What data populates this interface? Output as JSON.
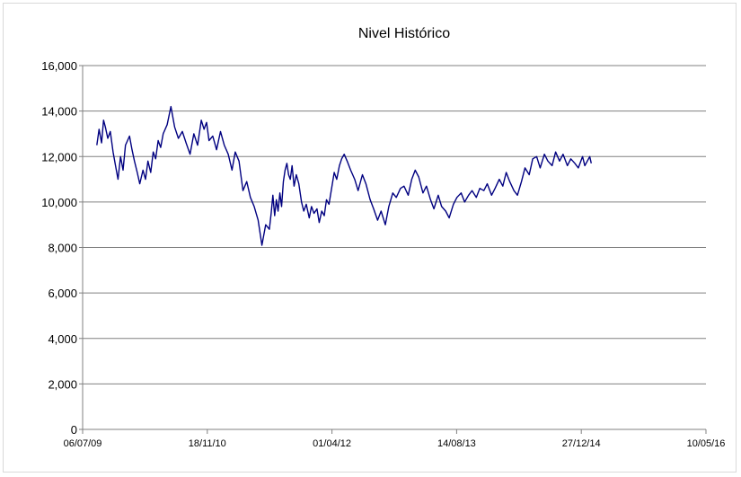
{
  "chart_data": {
    "type": "line",
    "title": "Nivel Histórico",
    "xlabel": "",
    "ylabel": "",
    "x_axis_type": "date",
    "xlim": [
      "2009-07-06",
      "2016-05-10"
    ],
    "ylim": [
      0,
      16000
    ],
    "yticks": [
      0,
      2000,
      4000,
      6000,
      8000,
      10000,
      12000,
      14000,
      16000
    ],
    "ytick_labels": [
      "0",
      "2,000",
      "4,000",
      "6,000",
      "8,000",
      "10,000",
      "12,000",
      "14,000",
      "16,000"
    ],
    "xticks": [
      "2009-07-06",
      "2010-11-18",
      "2012-04-01",
      "2013-08-14",
      "2014-12-27",
      "2016-05-10"
    ],
    "xtick_labels": [
      "06/07/09",
      "18/11/10",
      "01/04/12",
      "14/08/13",
      "27/12/14",
      "10/05/16"
    ],
    "grid": {
      "y": true,
      "x": false
    },
    "legend": "none",
    "colors": {
      "line": "#000080",
      "grid": "#808080",
      "axis": "#808080",
      "frame": "#d9d9d9"
    },
    "series": [
      {
        "x": [
          "2009-09-01",
          "2009-09-10",
          "2009-09-20",
          "2009-09-28",
          "2009-10-05",
          "2009-10-15",
          "2009-10-25",
          "2009-11-05",
          "2009-11-15",
          "2009-11-25",
          "2009-12-05",
          "2009-12-15",
          "2009-12-25",
          "2010-01-10",
          "2010-01-20",
          "2010-01-30",
          "2010-02-10",
          "2010-02-20",
          "2010-03-05",
          "2010-03-15",
          "2010-03-25",
          "2010-04-05",
          "2010-04-15",
          "2010-04-25",
          "2010-05-05",
          "2010-05-15",
          "2010-05-25",
          "2010-06-10",
          "2010-06-25",
          "2010-07-10",
          "2010-07-25",
          "2010-08-10",
          "2010-08-25",
          "2010-09-10",
          "2010-09-25",
          "2010-10-10",
          "2010-10-25",
          "2010-11-05",
          "2010-11-15",
          "2010-11-25",
          "2010-12-10",
          "2010-12-25",
          "2011-01-10",
          "2011-01-25",
          "2011-02-10",
          "2011-02-25",
          "2011-03-10",
          "2011-03-25",
          "2011-04-10",
          "2011-04-25",
          "2011-05-10",
          "2011-05-25",
          "2011-06-10",
          "2011-06-25",
          "2011-07-10",
          "2011-07-25",
          "2011-08-01",
          "2011-08-08",
          "2011-08-15",
          "2011-08-22",
          "2011-08-29",
          "2011-09-05",
          "2011-09-12",
          "2011-09-19",
          "2011-09-26",
          "2011-10-03",
          "2011-10-10",
          "2011-10-17",
          "2011-10-24",
          "2011-11-01",
          "2011-11-10",
          "2011-11-20",
          "2011-12-01",
          "2011-12-10",
          "2011-12-20",
          "2012-01-01",
          "2012-01-10",
          "2012-01-20",
          "2012-02-01",
          "2012-02-10",
          "2012-02-20",
          "2012-03-01",
          "2012-03-10",
          "2012-03-20",
          "2012-04-01",
          "2012-04-10",
          "2012-04-20",
          "2012-05-01",
          "2012-05-10",
          "2012-05-20",
          "2012-06-01",
          "2012-06-15",
          "2012-07-01",
          "2012-07-15",
          "2012-08-01",
          "2012-08-15",
          "2012-09-01",
          "2012-09-15",
          "2012-10-01",
          "2012-10-15",
          "2012-11-01",
          "2012-11-15",
          "2012-12-01",
          "2012-12-15",
          "2013-01-01",
          "2013-01-15",
          "2013-02-01",
          "2013-02-15",
          "2013-03-01",
          "2013-03-15",
          "2013-04-01",
          "2013-04-15",
          "2013-05-01",
          "2013-05-15",
          "2013-06-01",
          "2013-06-15",
          "2013-07-01",
          "2013-07-15",
          "2013-08-01",
          "2013-08-15",
          "2013-09-01",
          "2013-09-15",
          "2013-10-01",
          "2013-10-15",
          "2013-11-01",
          "2013-11-15",
          "2013-12-01",
          "2013-12-15",
          "2014-01-01",
          "2014-01-15",
          "2014-02-01",
          "2014-02-15",
          "2014-03-01",
          "2014-03-15",
          "2014-04-01",
          "2014-04-15",
          "2014-05-01",
          "2014-05-15",
          "2014-06-01",
          "2014-06-15",
          "2014-07-01",
          "2014-07-15",
          "2014-08-01",
          "2014-08-15",
          "2014-09-01",
          "2014-09-15",
          "2014-10-01",
          "2014-10-15",
          "2014-11-01",
          "2014-11-15",
          "2014-12-01",
          "2014-12-15",
          "2015-01-01",
          "2015-01-10",
          "2015-01-20",
          "2015-01-30",
          "2015-02-05"
        ],
        "y": [
          12500,
          13200,
          12600,
          13600,
          13300,
          12800,
          13100,
          12200,
          11600,
          11000,
          12000,
          11400,
          12500,
          12900,
          12300,
          11800,
          11300,
          10800,
          11400,
          11000,
          11800,
          11300,
          12200,
          11900,
          12700,
          12400,
          13000,
          13400,
          14200,
          13300,
          12800,
          13100,
          12600,
          12100,
          13000,
          12500,
          13600,
          13200,
          13500,
          12700,
          12900,
          12300,
          13100,
          12500,
          12100,
          11400,
          12200,
          11800,
          10500,
          10900,
          10200,
          9800,
          9200,
          8100,
          9000,
          8800,
          9500,
          10300,
          9400,
          10100,
          9600,
          10400,
          9800,
          10900,
          11400,
          11700,
          11200,
          11000,
          11600,
          10700,
          11200,
          10800,
          10000,
          9600,
          9900,
          9300,
          9800,
          9500,
          9700,
          9100,
          9600,
          9400,
          10100,
          9900,
          10700,
          11300,
          11000,
          11600,
          11900,
          12100,
          11800,
          11400,
          11000,
          10500,
          11200,
          10800,
          10100,
          9700,
          9200,
          9600,
          9000,
          9800,
          10400,
          10200,
          10600,
          10700,
          10300,
          11000,
          11400,
          11100,
          10400,
          10700,
          10100,
          9700,
          10300,
          9800,
          9600,
          9300,
          9900,
          10200,
          10400,
          10000,
          10300,
          10500,
          10200,
          10600,
          10500,
          10800,
          10300,
          10600,
          11000,
          10700,
          11300,
          10900,
          10500,
          10300,
          10900,
          11500,
          11200,
          11900,
          12000,
          11500,
          12100,
          11800,
          11600,
          12200,
          11800,
          12100,
          11600,
          11900,
          11700,
          11500,
          12000,
          11600,
          11800,
          12000,
          11700
        ]
      }
    ]
  }
}
